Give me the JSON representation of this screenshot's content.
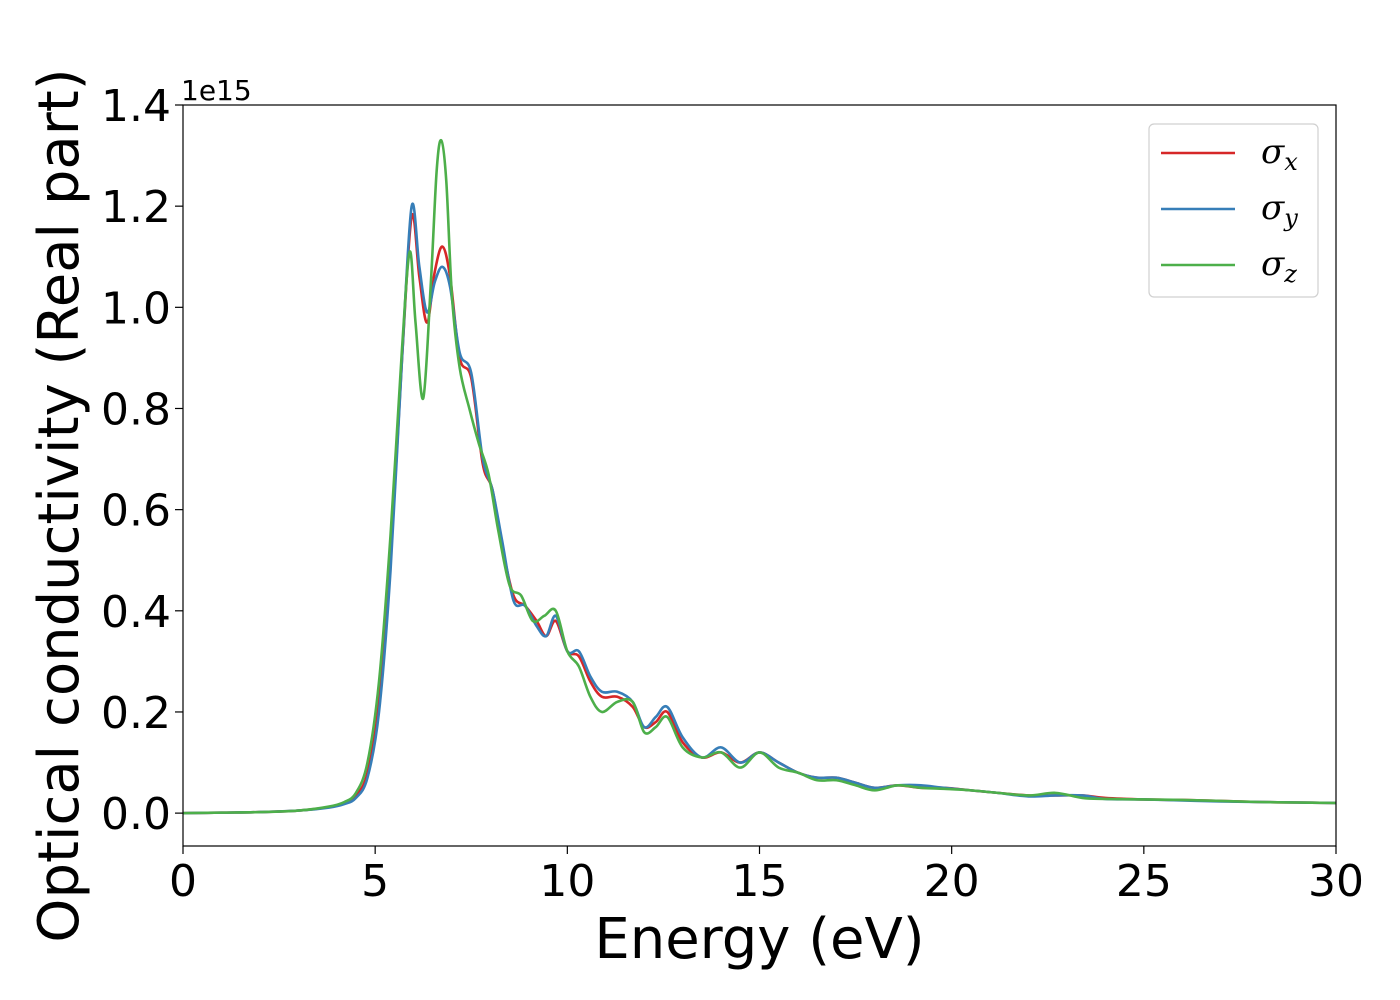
{
  "chart_data": {
    "type": "line",
    "title": "",
    "xlabel": "Energy (eV)",
    "ylabel": "Optical conductivity (Real part)",
    "y_offset_label": "1e15",
    "xlim": [
      0,
      30
    ],
    "ylim": [
      -0.065,
      1.4
    ],
    "x_ticks": [
      "0",
      "5",
      "10",
      "15",
      "20",
      "25",
      "30"
    ],
    "y_ticks": [
      "0.0",
      "0.2",
      "0.4",
      "0.6",
      "0.8",
      "1.0",
      "1.2",
      "1.4"
    ],
    "grid": false,
    "legend_position": "top-right",
    "series": [
      {
        "name": "σx",
        "symbol": "σ",
        "sub": "x",
        "color": "#d62728",
        "x": [
          0,
          1,
          2,
          3,
          3.8,
          4.2,
          4.5,
          4.8,
          5.1,
          5.4,
          5.7,
          5.95,
          6.15,
          6.35,
          6.55,
          6.75,
          6.95,
          7.2,
          7.5,
          7.8,
          8.05,
          8.3,
          8.6,
          8.9,
          9.2,
          9.45,
          9.7,
          10.0,
          10.3,
          10.6,
          10.9,
          11.3,
          11.7,
          12.0,
          12.3,
          12.6,
          13.0,
          13.5,
          14.0,
          14.5,
          15.0,
          15.5,
          16.0,
          16.5,
          17.0,
          17.5,
          18.0,
          18.6,
          19.2,
          19.8,
          20.5,
          21.2,
          22.0,
          22.7,
          23.4,
          24.0,
          25.0,
          26.0,
          27.0,
          28.0,
          29.0,
          30.0
        ],
        "y": [
          0.0,
          0.001,
          0.002,
          0.005,
          0.012,
          0.02,
          0.035,
          0.08,
          0.22,
          0.5,
          0.9,
          1.18,
          1.06,
          0.97,
          1.07,
          1.12,
          1.06,
          0.9,
          0.86,
          0.69,
          0.64,
          0.53,
          0.43,
          0.41,
          0.38,
          0.35,
          0.38,
          0.32,
          0.31,
          0.26,
          0.23,
          0.23,
          0.21,
          0.17,
          0.18,
          0.2,
          0.14,
          0.11,
          0.12,
          0.1,
          0.12,
          0.1,
          0.08,
          0.07,
          0.07,
          0.06,
          0.05,
          0.055,
          0.05,
          0.05,
          0.045,
          0.04,
          0.035,
          0.035,
          0.035,
          0.03,
          0.027,
          0.026,
          0.024,
          0.022,
          0.021,
          0.02
        ]
      },
      {
        "name": "σy",
        "symbol": "σ",
        "sub": "y",
        "color": "#377eb8",
        "x": [
          0,
          1,
          2,
          3,
          3.8,
          4.2,
          4.5,
          4.8,
          5.1,
          5.4,
          5.7,
          5.95,
          6.15,
          6.35,
          6.55,
          6.75,
          6.95,
          7.2,
          7.5,
          7.8,
          8.05,
          8.3,
          8.6,
          8.9,
          9.2,
          9.45,
          9.7,
          10.0,
          10.3,
          10.6,
          10.9,
          11.3,
          11.7,
          12.0,
          12.3,
          12.6,
          13.0,
          13.5,
          14.0,
          14.5,
          15.0,
          15.5,
          16.0,
          16.5,
          17.0,
          17.5,
          18.0,
          18.6,
          19.2,
          19.8,
          20.5,
          21.2,
          22.0,
          22.7,
          23.4,
          24.0,
          25.0,
          26.0,
          27.0,
          28.0,
          29.0,
          30.0
        ],
        "y": [
          0.0,
          0.001,
          0.002,
          0.005,
          0.011,
          0.018,
          0.03,
          0.07,
          0.2,
          0.48,
          0.9,
          1.2,
          1.08,
          0.99,
          1.05,
          1.08,
          1.04,
          0.91,
          0.87,
          0.7,
          0.64,
          0.54,
          0.42,
          0.41,
          0.37,
          0.35,
          0.39,
          0.32,
          0.32,
          0.27,
          0.24,
          0.24,
          0.22,
          0.17,
          0.19,
          0.21,
          0.15,
          0.11,
          0.13,
          0.1,
          0.12,
          0.1,
          0.08,
          0.07,
          0.07,
          0.06,
          0.05,
          0.055,
          0.055,
          0.05,
          0.045,
          0.04,
          0.033,
          0.035,
          0.035,
          0.028,
          0.027,
          0.025,
          0.023,
          0.022,
          0.021,
          0.02
        ]
      },
      {
        "name": "σz",
        "symbol": "σ",
        "sub": "z",
        "color": "#4daf4a",
        "x": [
          0,
          1,
          2,
          3,
          3.8,
          4.2,
          4.5,
          4.8,
          5.1,
          5.4,
          5.7,
          5.9,
          6.05,
          6.25,
          6.45,
          6.6,
          6.72,
          6.85,
          7.0,
          7.2,
          7.45,
          7.7,
          7.95,
          8.2,
          8.5,
          8.8,
          9.1,
          9.4,
          9.7,
          10.0,
          10.3,
          10.6,
          10.9,
          11.3,
          11.7,
          12.0,
          12.3,
          12.6,
          13.0,
          13.5,
          14.0,
          14.5,
          15.0,
          15.5,
          16.0,
          16.5,
          17.0,
          17.5,
          18.0,
          18.6,
          19.2,
          19.8,
          20.5,
          21.2,
          22.0,
          22.7,
          23.4,
          24.0,
          25.0,
          26.0,
          27.0,
          28.0,
          29.0,
          30.0
        ],
        "y": [
          0.0,
          0.001,
          0.002,
          0.005,
          0.013,
          0.022,
          0.04,
          0.1,
          0.26,
          0.55,
          0.92,
          1.11,
          0.97,
          0.82,
          1.05,
          1.27,
          1.33,
          1.25,
          1.02,
          0.88,
          0.8,
          0.73,
          0.67,
          0.56,
          0.45,
          0.43,
          0.38,
          0.39,
          0.4,
          0.32,
          0.29,
          0.23,
          0.2,
          0.22,
          0.22,
          0.16,
          0.17,
          0.19,
          0.13,
          0.11,
          0.12,
          0.09,
          0.12,
          0.09,
          0.08,
          0.065,
          0.065,
          0.055,
          0.045,
          0.055,
          0.05,
          0.048,
          0.045,
          0.04,
          0.035,
          0.04,
          0.03,
          0.028,
          0.027,
          0.026,
          0.024,
          0.022,
          0.021,
          0.02
        ]
      }
    ]
  }
}
